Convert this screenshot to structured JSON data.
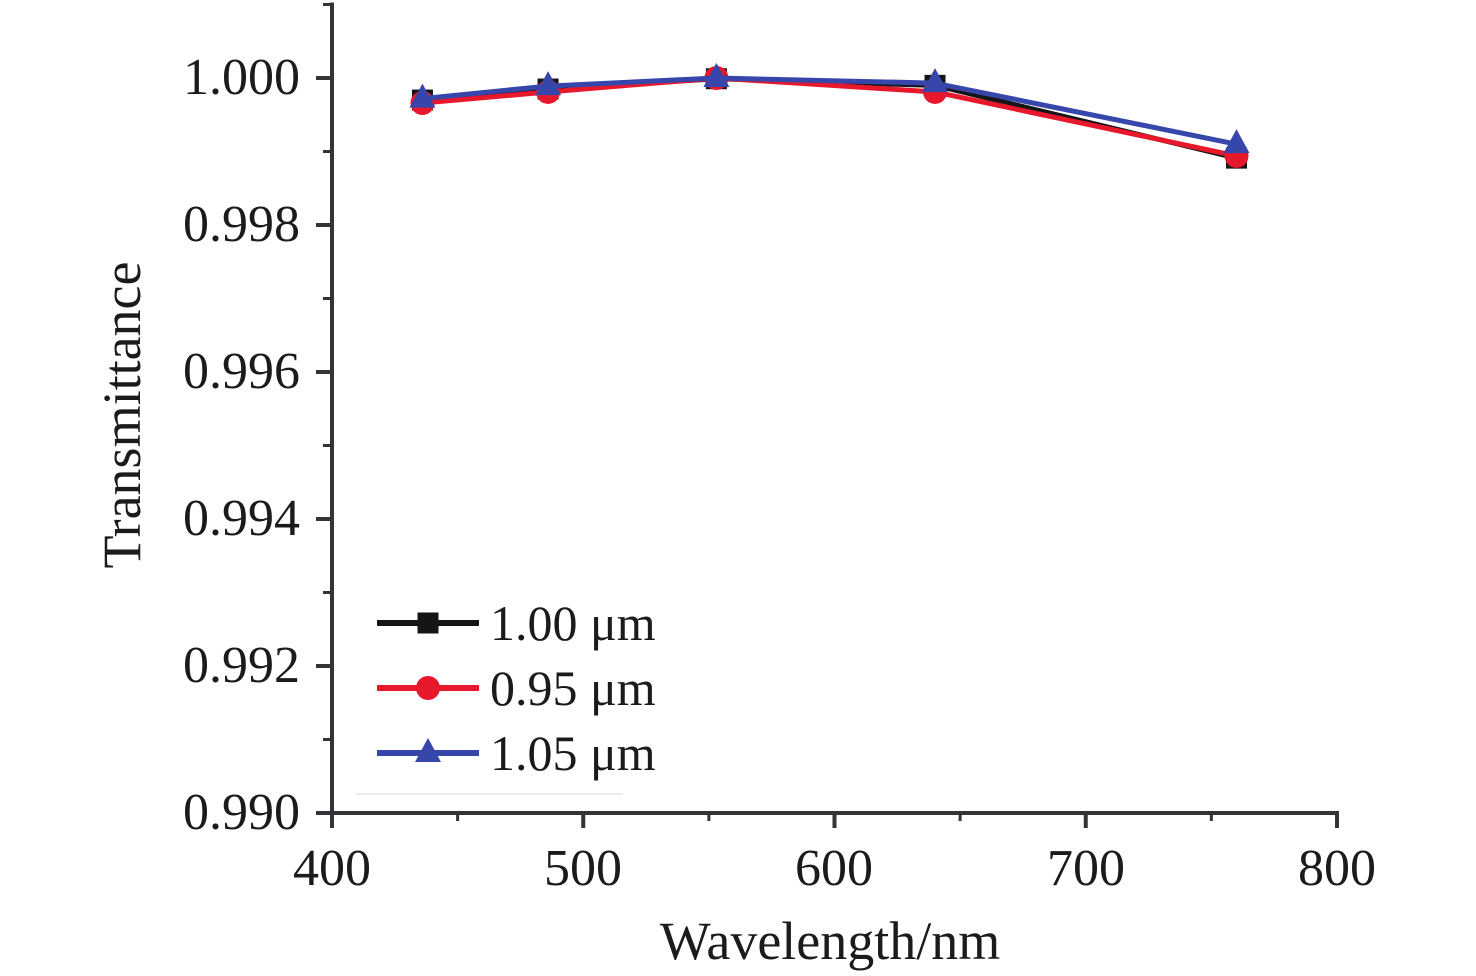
{
  "chart_data": {
    "type": "line",
    "title": "",
    "xlabel": "Wavelength/nm",
    "ylabel": "Transmittance",
    "xlim": [
      400,
      800
    ],
    "ylim": [
      0.99,
      1.001
    ],
    "xticks": [
      "400",
      "500",
      "600",
      "700",
      "800"
    ],
    "yticks": [
      "1.000",
      "0.998",
      "0.996",
      "0.994",
      "0.992",
      "0.990"
    ],
    "ytick_values": [
      1.0,
      0.998,
      0.996,
      0.994,
      0.992,
      0.99
    ],
    "xtick_values": [
      400,
      500,
      600,
      700,
      800
    ],
    "x_minor_ticks": [
      450,
      550,
      650,
      750
    ],
    "y_minor_ticks": [
      0.991,
      0.993,
      0.995,
      0.997,
      0.999,
      1.001
    ],
    "grid": false,
    "legend_position": "lower-left-inside",
    "axis_color": "#333338",
    "text_color": "#1b1b1b",
    "x": [
      436,
      486,
      553,
      640,
      760
    ],
    "series": [
      {
        "name": "1.00 μm",
        "color": "#151515",
        "marker": "square",
        "values": [
          0.9997,
          0.99985,
          0.99999,
          0.9999,
          0.99891
        ]
      },
      {
        "name": "0.95 μm",
        "color": "#e7182c",
        "marker": "circle",
        "values": [
          0.99966,
          0.99981,
          1.0,
          0.99981,
          0.99894
        ]
      },
      {
        "name": "1.05 μm",
        "color": "#3646ab",
        "marker": "triangle",
        "values": [
          0.99972,
          0.99989,
          1.0,
          0.99993,
          0.9991
        ]
      }
    ]
  }
}
